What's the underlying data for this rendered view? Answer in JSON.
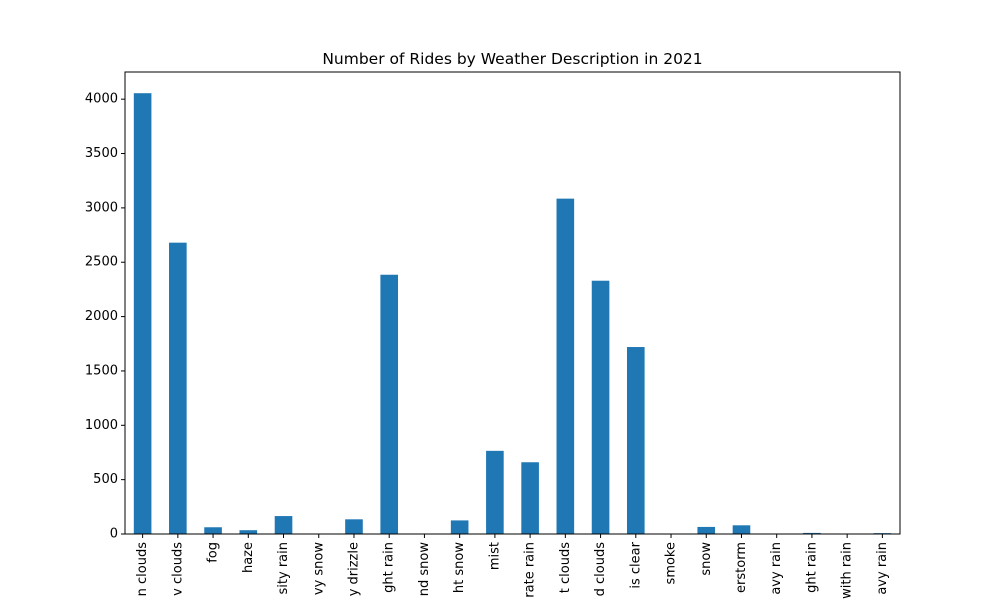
{
  "chart_data": {
    "type": "bar",
    "title": "Number of Rides by Weather Description in 2021",
    "xlabel": "",
    "ylabel": "",
    "categories": [
      "n clouds",
      "v clouds",
      "fog",
      "haze",
      "sity rain",
      "vy snow",
      "y drizzle",
      "ght rain",
      "nd snow",
      "ht snow",
      "mist",
      "rate rain",
      "t clouds",
      "d clouds",
      "is clear",
      "smoke",
      "snow",
      "erstorm",
      "avy rain",
      "ght rain",
      "with rain",
      "avy rain"
    ],
    "values": [
      4055,
      2680,
      62,
      35,
      165,
      0,
      135,
      2385,
      0,
      125,
      765,
      660,
      3085,
      2330,
      1720,
      0,
      65,
      80,
      0,
      10,
      0,
      8
    ],
    "yticks": [
      0,
      500,
      1000,
      1500,
      2000,
      2500,
      3000,
      3500,
      4000
    ],
    "ylim": [
      0,
      4250
    ],
    "bar_color": "#1f77b4",
    "grid": false,
    "legend": "none"
  }
}
